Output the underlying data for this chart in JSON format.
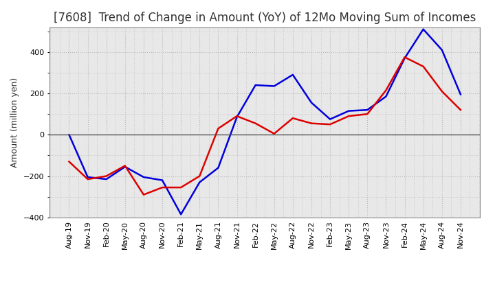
{
  "title": "[7608]  Trend of Change in Amount (YoY) of 12Mo Moving Sum of Incomes",
  "ylabel": "Amount (million yen)",
  "xlabels": [
    "Aug-19",
    "Nov-19",
    "Feb-20",
    "May-20",
    "Aug-20",
    "Nov-20",
    "Feb-21",
    "May-21",
    "Aug-21",
    "Nov-21",
    "Feb-22",
    "May-22",
    "Aug-22",
    "Nov-22",
    "Feb-23",
    "May-23",
    "Aug-23",
    "Nov-23",
    "Feb-24",
    "May-24",
    "Aug-24",
    "Nov-24"
  ],
  "ordinary_income": [
    0,
    -205,
    -215,
    -155,
    -205,
    -220,
    -385,
    -230,
    -160,
    85,
    240,
    235,
    290,
    155,
    75,
    115,
    120,
    185,
    370,
    510,
    410,
    195
  ],
  "net_income": [
    -130,
    -215,
    -200,
    -150,
    -290,
    -255,
    -255,
    -200,
    30,
    90,
    55,
    5,
    80,
    55,
    50,
    90,
    100,
    215,
    375,
    330,
    210,
    120
  ],
  "ordinary_color": "#0000DD",
  "net_color": "#DD0000",
  "ylim": [
    -400,
    520
  ],
  "yticks": [
    -400,
    -200,
    0,
    200,
    400
  ],
  "plot_bg_color": "#E8E8E8",
  "fig_bg_color": "#FFFFFF",
  "grid_color": "#BBBBBB",
  "zero_line_color": "#555555",
  "title_color": "#333333",
  "title_fontsize": 12,
  "ylabel_fontsize": 9,
  "tick_fontsize": 8,
  "legend_fontsize": 9,
  "line_width": 1.8
}
